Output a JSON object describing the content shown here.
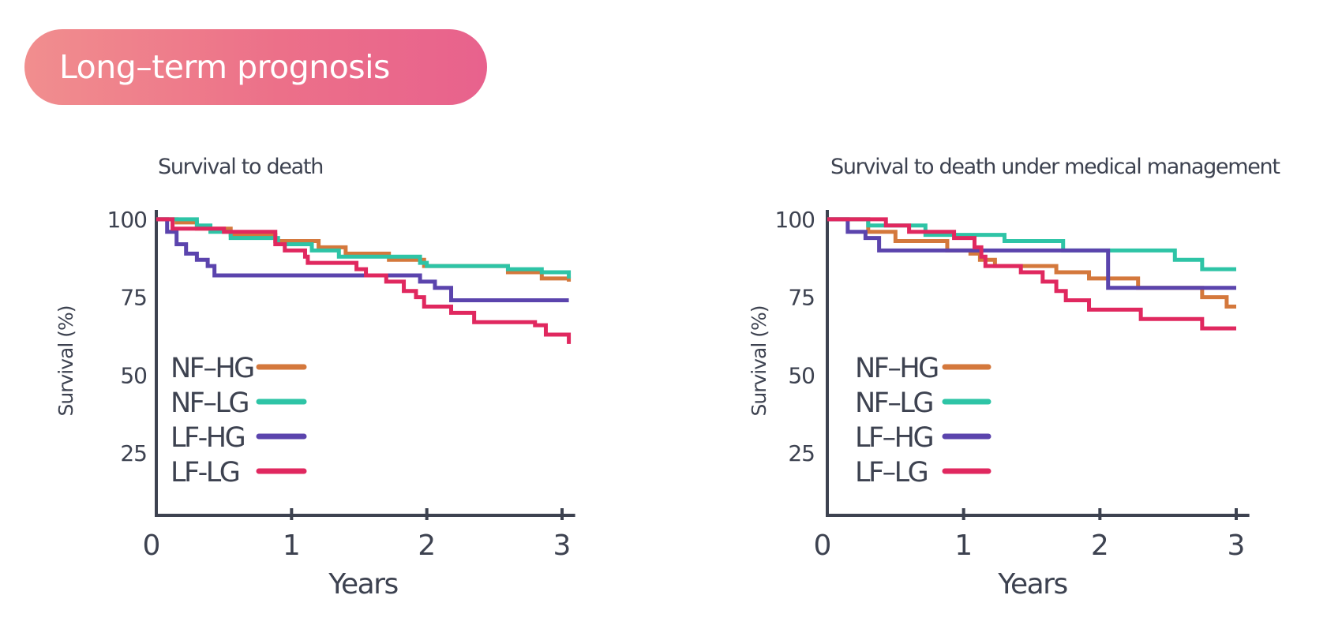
{
  "header": {
    "title": "Long–term prognosis"
  },
  "colors": {
    "axis": "#3d4250",
    "NF-HG": "#d4783c",
    "NF-LG": "#2ec4a6",
    "LF-HG": "#5b44ad",
    "LF-LG": "#e0285f"
  },
  "chart_data": [
    {
      "type": "line",
      "step": true,
      "title": "Survival to death",
      "xlabel": "Years",
      "ylabel": "Survival (%)",
      "xlim": [
        0,
        3.05
      ],
      "ylim": [
        5,
        102
      ],
      "x_ticks": [
        "0",
        "1",
        "2",
        "3"
      ],
      "y_ticks": [
        "100",
        "75",
        "50",
        "25"
      ],
      "grid": false,
      "legend": "lower-left",
      "series": [
        {
          "name": "NF–HG",
          "color_key": "NF-HG",
          "points": [
            [
              0,
              100
            ],
            [
              0.15,
              99
            ],
            [
              0.3,
              97
            ],
            [
              0.55,
              95
            ],
            [
              0.88,
              93
            ],
            [
              1.2,
              91
            ],
            [
              1.4,
              89
            ],
            [
              1.72,
              87
            ],
            [
              1.98,
              85
            ],
            [
              2.6,
              83
            ],
            [
              2.85,
              81
            ],
            [
              3.05,
              80
            ]
          ]
        },
        {
          "name": "NF–LG",
          "color_key": "NF-LG",
          "points": [
            [
              0,
              100
            ],
            [
              0.3,
              98
            ],
            [
              0.4,
              96
            ],
            [
              0.55,
              94
            ],
            [
              0.9,
              92
            ],
            [
              1.15,
              90
            ],
            [
              1.35,
              88
            ],
            [
              1.95,
              86
            ],
            [
              2.0,
              85
            ],
            [
              2.6,
              84
            ],
            [
              2.85,
              83
            ],
            [
              3.05,
              81
            ]
          ]
        },
        {
          "name": "LF-HG",
          "color_key": "LF-HG",
          "points": [
            [
              0,
              100
            ],
            [
              0.08,
              96
            ],
            [
              0.15,
              92
            ],
            [
              0.22,
              89
            ],
            [
              0.3,
              87
            ],
            [
              0.38,
              85
            ],
            [
              0.43,
              82
            ],
            [
              1.95,
              80
            ],
            [
              2.06,
              78
            ],
            [
              2.18,
              74
            ],
            [
              3.05,
              74
            ]
          ]
        },
        {
          "name": "LF-LG",
          "color_key": "LF-LG",
          "points": [
            [
              0,
              100
            ],
            [
              0.12,
              97
            ],
            [
              0.5,
              96
            ],
            [
              0.88,
              92
            ],
            [
              0.95,
              90
            ],
            [
              1.1,
              88
            ],
            [
              1.12,
              86
            ],
            [
              1.48,
              84
            ],
            [
              1.55,
              82
            ],
            [
              1.7,
              80
            ],
            [
              1.83,
              77
            ],
            [
              1.92,
              75
            ],
            [
              1.98,
              72
            ],
            [
              2.18,
              70
            ],
            [
              2.35,
              67
            ],
            [
              2.8,
              66
            ],
            [
              2.88,
              63
            ],
            [
              3.05,
              60
            ]
          ]
        }
      ]
    },
    {
      "type": "line",
      "step": true,
      "title": "Survival to death under medical management",
      "xlabel": "Years",
      "ylabel": "Survival (%)",
      "xlim": [
        0,
        3.05
      ],
      "ylim": [
        5,
        102
      ],
      "x_ticks": [
        "0",
        "1",
        "2",
        "3"
      ],
      "y_ticks": [
        "100",
        "75",
        "50",
        "25"
      ],
      "grid": false,
      "legend": "lower-left",
      "series": [
        {
          "name": "NF–HG",
          "color_key": "NF-HG",
          "points": [
            [
              0,
              100
            ],
            [
              0.3,
              96
            ],
            [
              0.5,
              93
            ],
            [
              0.88,
              90
            ],
            [
              1.05,
              89
            ],
            [
              1.12,
              87
            ],
            [
              1.23,
              85
            ],
            [
              1.68,
              83
            ],
            [
              1.92,
              81
            ],
            [
              2.28,
              78
            ],
            [
              2.75,
              75
            ],
            [
              2.93,
              72
            ],
            [
              3.0,
              72
            ]
          ]
        },
        {
          "name": "NF–LG",
          "color_key": "NF-LG",
          "points": [
            [
              0,
              100
            ],
            [
              0.3,
              98
            ],
            [
              0.72,
              95
            ],
            [
              1.3,
              93
            ],
            [
              1.73,
              90
            ],
            [
              2.55,
              87
            ],
            [
              2.75,
              84
            ],
            [
              3.0,
              84
            ]
          ]
        },
        {
          "name": "LF–HG",
          "color_key": "LF-HG",
          "points": [
            [
              0,
              100
            ],
            [
              0.15,
              96
            ],
            [
              0.28,
              94
            ],
            [
              0.38,
              90
            ],
            [
              2.06,
              90
            ],
            [
              2.06,
              78
            ],
            [
              3.0,
              78
            ]
          ]
        },
        {
          "name": "LF–LG",
          "color_key": "LF-LG",
          "points": [
            [
              0,
              100
            ],
            [
              0.43,
              98
            ],
            [
              0.6,
              96
            ],
            [
              0.93,
              94
            ],
            [
              1.08,
              91
            ],
            [
              1.13,
              88
            ],
            [
              1.16,
              85
            ],
            [
              1.42,
              83
            ],
            [
              1.58,
              80
            ],
            [
              1.68,
              77
            ],
            [
              1.75,
              74
            ],
            [
              1.92,
              71
            ],
            [
              2.3,
              68
            ],
            [
              2.75,
              65
            ],
            [
              3.0,
              65
            ]
          ]
        }
      ]
    }
  ]
}
